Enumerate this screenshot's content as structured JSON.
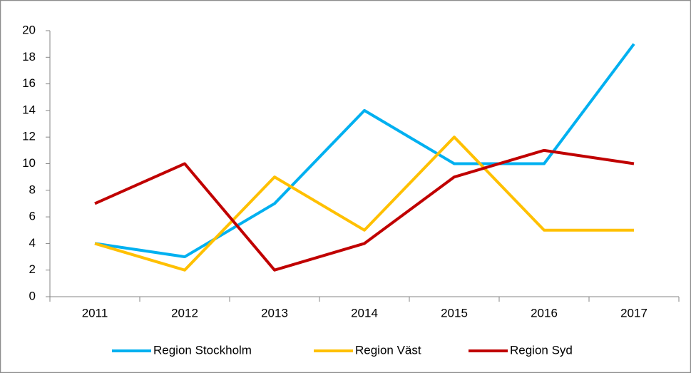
{
  "chart_data": {
    "type": "line",
    "categories": [
      "2011",
      "2012",
      "2013",
      "2014",
      "2015",
      "2016",
      "2017"
    ],
    "series": [
      {
        "name": "Region Stockholm",
        "color": "#00b0f0",
        "values": [
          4,
          3,
          7,
          14,
          10,
          10,
          19
        ]
      },
      {
        "name": "Region Väst",
        "color": "#ffc000",
        "values": [
          4,
          2,
          9,
          5,
          12,
          5,
          5
        ]
      },
      {
        "name": "Region Syd",
        "color": "#c00000",
        "values": [
          7,
          10,
          2,
          4,
          9,
          11,
          10
        ]
      }
    ],
    "ylim": [
      0,
      20
    ],
    "yticks": [
      0,
      2,
      4,
      6,
      8,
      10,
      12,
      14,
      16,
      18,
      20
    ],
    "grid": false,
    "legend": "bottom"
  }
}
